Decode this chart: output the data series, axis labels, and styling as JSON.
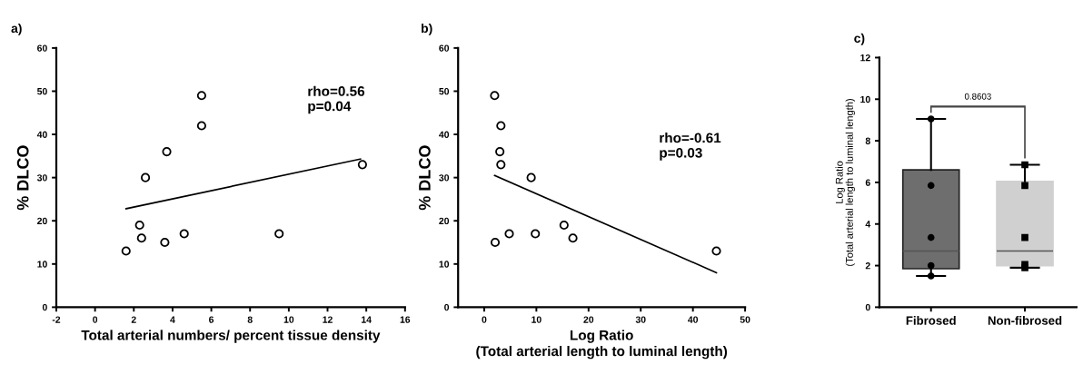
{
  "chart_data": [
    {
      "type": "scatter",
      "title": "a)",
      "xlabel": "Total arterial numbers/ percent tissue density",
      "ylabel": "% DLCO",
      "xlim": [
        -2,
        16
      ],
      "xticks": [
        -2,
        0,
        2,
        4,
        6,
        8,
        10,
        12,
        14,
        16
      ],
      "ylim": [
        0,
        60
      ],
      "yticks": [
        0,
        10,
        20,
        30,
        40,
        50,
        60
      ],
      "grid": false,
      "legend": false,
      "annotations": [
        "rho=0.56\np=0.04"
      ],
      "series": [
        {
          "type": "scatter",
          "color": "#000000",
          "marker": "circle",
          "x": [
            1.6,
            2.3,
            2.4,
            2.6,
            3.6,
            3.7,
            4.6,
            5.5,
            5.5,
            9.5,
            13.8
          ],
          "values": [
            13,
            19,
            16,
            30,
            15,
            36,
            17,
            49,
            42,
            17,
            33
          ]
        },
        {
          "type": "line",
          "color": "#000000",
          "x": [
            1.6,
            13.7
          ],
          "values": [
            22.8,
            34.3
          ]
        }
      ]
    },
    {
      "type": "scatter",
      "title": "b)",
      "xlabel": "Log Ratio\n(Total arterial length to luminal length)",
      "ylabel": "% DLCO",
      "xlim": [
        -5,
        50
      ],
      "xticks": [
        0,
        10,
        20,
        30,
        40,
        50
      ],
      "ylim": [
        0,
        60
      ],
      "yticks": [
        0,
        10,
        20,
        30,
        40,
        50,
        60
      ],
      "grid": false,
      "legend": false,
      "annotations": [
        "rho=-0.61\np=0.03"
      ],
      "series": [
        {
          "type": "scatter",
          "color": "#000000",
          "marker": "circle",
          "x": [
            2,
            3.2,
            3,
            3.2,
            9,
            2.1,
            4.8,
            9.8,
            15.3,
            17,
            44.5
          ],
          "values": [
            49,
            42,
            36,
            33,
            30,
            15,
            17,
            17,
            19,
            16,
            13
          ]
        },
        {
          "type": "line",
          "color": "#000000",
          "x": [
            2,
            44.5
          ],
          "values": [
            30.5,
            8
          ]
        }
      ]
    },
    {
      "type": "box",
      "title": "c)",
      "ylabel": "Log Ratio\n(Total arterial length to luminal length)",
      "categories": [
        "Fibrosed",
        "Non-fibrosed"
      ],
      "ylim": [
        0,
        12
      ],
      "yticks": [
        0,
        2,
        4,
        6,
        8,
        10,
        12
      ],
      "grid": false,
      "legend": false,
      "colors": [
        "#6e6e6e",
        "#d0d0d0"
      ],
      "boxes": [
        {
          "low": 1.5,
          "q1": 1.85,
          "median": 2.7,
          "q3": 6.6,
          "high": 9.05
        },
        {
          "low": 1.9,
          "q1": 2.0,
          "median": 2.7,
          "q3": 6.05,
          "high": 6.85
        }
      ],
      "annotations": [
        "0.8603"
      ],
      "series": [
        {
          "type": "scatter",
          "color": "#000000",
          "marker": "circle",
          "x": [
            "Fibrosed",
            "Fibrosed",
            "Fibrosed",
            "Fibrosed",
            "Fibrosed"
          ],
          "values": [
            9.05,
            5.85,
            3.35,
            2.0,
            1.5
          ]
        },
        {
          "type": "scatter",
          "color": "#000000",
          "marker": "square",
          "x": [
            "Non-fibrosed",
            "Non-fibrosed",
            "Non-fibrosed",
            "Non-fibrosed",
            "Non-fibrosed"
          ],
          "values": [
            6.85,
            5.85,
            3.35,
            2.05,
            1.9
          ]
        }
      ]
    }
  ]
}
